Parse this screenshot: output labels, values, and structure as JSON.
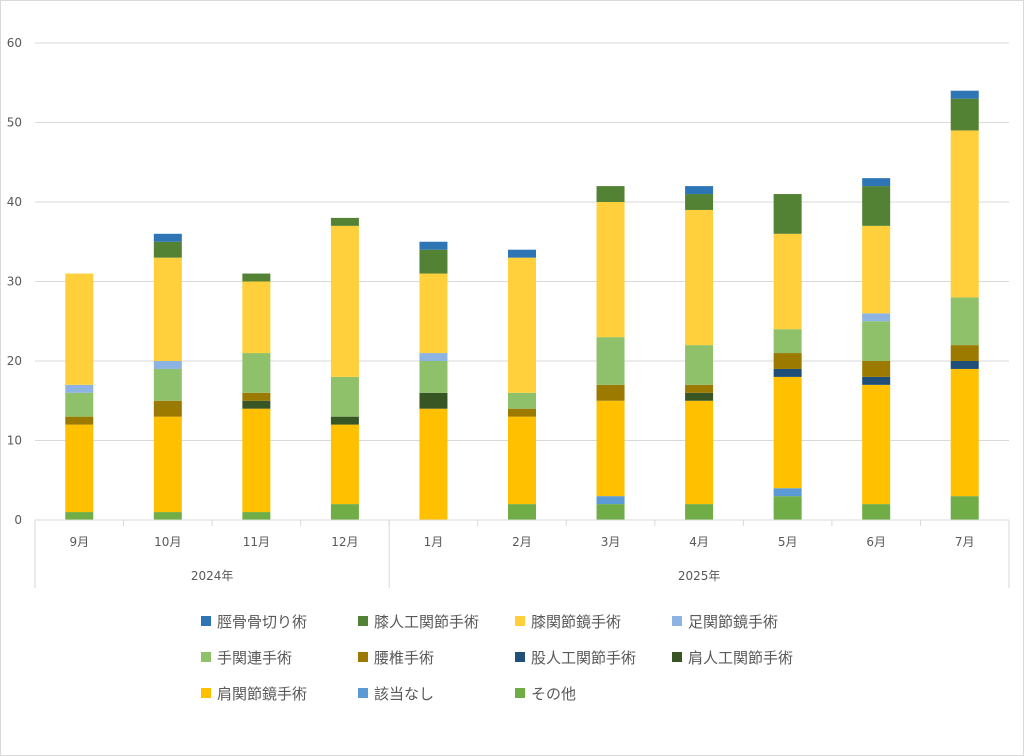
{
  "chart_data": {
    "type": "bar",
    "stacked": true,
    "title": "",
    "xlabel": "",
    "ylabel": "",
    "ylim": [
      0,
      60
    ],
    "yticks": [
      0,
      10,
      20,
      30,
      40,
      50,
      60
    ],
    "grid": true,
    "legend_position": "bottom",
    "categories": [
      "9月",
      "10月",
      "11月",
      "12月",
      "1月",
      "2月",
      "3月",
      "4月",
      "5月",
      "6月",
      "7月"
    ],
    "groups": [
      {
        "label": "2024年",
        "span": 4
      },
      {
        "label": "2025年",
        "span": 7
      }
    ],
    "series": [
      {
        "name": "その他",
        "color": "#70ad47",
        "values": [
          1,
          1,
          1,
          2,
          0,
          2,
          2,
          2,
          3,
          2,
          3
        ]
      },
      {
        "name": "該当なし",
        "color": "#5b9bd5",
        "values": [
          0,
          0,
          0,
          0,
          0,
          0,
          1,
          0,
          1,
          0,
          0
        ]
      },
      {
        "name": "肩関節鏡手術",
        "color": "#ffc000",
        "values": [
          11,
          12,
          13,
          10,
          14,
          11,
          12,
          13,
          14,
          15,
          16
        ]
      },
      {
        "name": "肩人工関節手術",
        "color": "#375623",
        "values": [
          0,
          0,
          1,
          1,
          2,
          0,
          0,
          1,
          0,
          0,
          0
        ]
      },
      {
        "name": "股人工関節手術",
        "color": "#1f4e79",
        "values": [
          0,
          0,
          0,
          0,
          0,
          0,
          0,
          0,
          1,
          1,
          1
        ]
      },
      {
        "name": "腰椎手術",
        "color": "#9c7a00",
        "values": [
          1,
          2,
          1,
          0,
          0,
          1,
          2,
          1,
          2,
          2,
          2
        ]
      },
      {
        "name": "手関連手術",
        "color": "#8fc16a",
        "values": [
          3,
          4,
          5,
          5,
          4,
          2,
          6,
          5,
          3,
          5,
          6
        ]
      },
      {
        "name": "足関節鏡手術",
        "color": "#8db3e2",
        "values": [
          1,
          1,
          0,
          0,
          1,
          0,
          0,
          0,
          0,
          1,
          0
        ]
      },
      {
        "name": "膝関節鏡手術",
        "color": "#ffd03b",
        "values": [
          14,
          13,
          9,
          19,
          10,
          17,
          17,
          17,
          12,
          11,
          21
        ]
      },
      {
        "name": "膝人工関節手術",
        "color": "#548235",
        "values": [
          0,
          2,
          1,
          1,
          3,
          0,
          2,
          2,
          5,
          5,
          4
        ]
      },
      {
        "name": "脛骨骨切り術",
        "color": "#2e75b6",
        "values": [
          0,
          1,
          0,
          0,
          1,
          1,
          0,
          1,
          0,
          1,
          1
        ]
      }
    ],
    "legend_order": [
      "脛骨骨切り術",
      "膝人工関節手術",
      "膝関節鏡手術",
      "足関節鏡手術",
      "手関連手術",
      "腰椎手術",
      "股人工関節手術",
      "肩人工関節手術",
      "肩関節鏡手術",
      "該当なし",
      "その他"
    ]
  }
}
